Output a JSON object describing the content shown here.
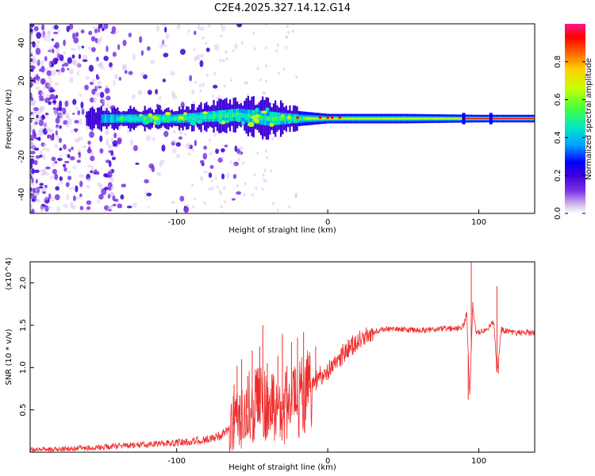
{
  "figure_title": "C2E4.2025.327.14.12.G14",
  "colorscale": [
    "#d8c4f0",
    "#7a33e6",
    "#3b00d8",
    "#0000ff",
    "#00a0ff",
    "#00e6c8",
    "#40ff40",
    "#c8ff00",
    "#ffd000",
    "#ff6000",
    "#ff0000",
    "#ff1a8c"
  ],
  "line_color": "#ef2b2b",
  "chart_data": [
    {
      "type": "heatmap",
      "title": "",
      "xlabel": "Height of straight line (km)",
      "ylabel": "Frequency (Hz)",
      "xlim": [
        -197,
        137
      ],
      "ylim": [
        -50,
        50
      ],
      "xticks": [
        -100,
        0,
        100
      ],
      "xtick_labels": [
        "-100",
        "0",
        "100"
      ],
      "yticks": [
        -40,
        -20,
        0,
        20,
        40
      ],
      "ytick_labels": [
        "-40",
        "-20",
        "0",
        "20",
        "40"
      ],
      "colorbar": {
        "label": "Normalized spectral amplitude",
        "range": [
          0,
          1
        ],
        "ticks": [
          0.0,
          0.2,
          0.4,
          0.6,
          0.8
        ],
        "tick_labels": [
          "0.0",
          "0.2",
          "0.4",
          "0.6",
          "0.8"
        ]
      },
      "ridge": {
        "description_x": [
          -197,
          -140,
          -100,
          -60,
          -40,
          -20,
          0,
          50,
          100,
          137
        ],
        "center_freq": [
          0,
          0,
          0,
          2,
          0,
          0,
          0,
          0,
          0,
          0
        ],
        "half_width_hz": [
          4,
          4,
          4,
          6,
          7,
          4,
          2.5,
          2.5,
          2,
          2
        ]
      }
    },
    {
      "type": "line",
      "title": "",
      "xlabel": "Height of straight line (km)",
      "ylabel": "SNR (10 * v/v)",
      "y_scale_note": "(x10^4)",
      "xlim": [
        -197,
        137
      ],
      "ylim": [
        0,
        22500
      ],
      "xticks": [
        -100,
        0,
        100
      ],
      "xtick_labels": [
        "-100",
        "0",
        "100"
      ],
      "yticks": [
        5000,
        10000,
        15000,
        20000
      ],
      "ytick_labels": [
        "0.5",
        "1.0",
        "1.5",
        "2.0"
      ],
      "series": [
        {
          "name": "SNR",
          "x": [
            -197,
            -180,
            -160,
            -140,
            -120,
            -100,
            -90,
            -80,
            -70,
            -60,
            -55,
            -50,
            -45,
            -40,
            -35,
            -30,
            -25,
            -20,
            -15,
            -10,
            -5,
            0,
            5,
            10,
            15,
            20,
            25,
            30,
            40,
            50,
            60,
            70,
            80,
            88,
            90,
            92,
            94,
            96,
            98,
            100,
            105,
            110,
            112,
            115,
            120,
            125,
            130,
            137
          ],
          "y": [
            300,
            350,
            500,
            700,
            900,
            1100,
            1300,
            1500,
            2000,
            3500,
            5000,
            5500,
            5800,
            5600,
            5300,
            5000,
            5500,
            6000,
            7000,
            8000,
            9000,
            9500,
            10500,
            11500,
            12500,
            13000,
            13800,
            14200,
            14600,
            14500,
            14400,
            14500,
            14600,
            14700,
            15000,
            16500,
            6500,
            17500,
            14000,
            14200,
            14400,
            15500,
            9500,
            14500,
            14200,
            14100,
            14200,
            14100
          ],
          "spikes": [
            {
              "x": -62,
              "y": 8000
            },
            {
              "x": -60,
              "y": 10200
            },
            {
              "x": -57,
              "y": 11000
            },
            {
              "x": -53,
              "y": 9000
            },
            {
              "x": -50,
              "y": 12000
            },
            {
              "x": -47,
              "y": 9500
            },
            {
              "x": -45,
              "y": 12500
            },
            {
              "x": -43,
              "y": 15000
            },
            {
              "x": -40,
              "y": 10500
            },
            {
              "x": -37,
              "y": 9200
            },
            {
              "x": -33,
              "y": 11400
            },
            {
              "x": -30,
              "y": 14000
            },
            {
              "x": -27,
              "y": 10200
            },
            {
              "x": -24,
              "y": 13000
            },
            {
              "x": -20,
              "y": 13500
            },
            {
              "x": -16,
              "y": 14200
            },
            {
              "x": -12,
              "y": 11800
            },
            {
              "x": -8,
              "y": 12500
            },
            {
              "x": 10,
              "y": 12800
            },
            {
              "x": 95,
              "y": 22500
            },
            {
              "x": 93,
              "y": 6200
            },
            {
              "x": 112,
              "y": 19600
            },
            {
              "x": 113,
              "y": 9300
            }
          ]
        }
      ]
    }
  ]
}
